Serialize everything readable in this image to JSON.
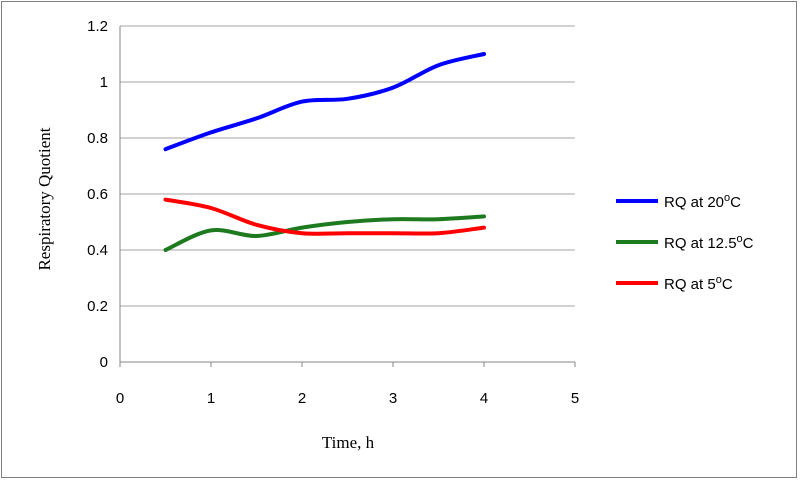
{
  "chart_data": {
    "type": "line",
    "title": "",
    "xlabel": "Time, h",
    "ylabel": "Respiratory Quotient",
    "xlim": [
      0,
      5
    ],
    "ylim": [
      0,
      1.2
    ],
    "x_ticks": [
      "0",
      "1",
      "2",
      "3",
      "4",
      "5"
    ],
    "y_ticks": [
      "0",
      "0.2",
      "0.4",
      "0.6",
      "0.8",
      "1",
      "1.2"
    ],
    "grid": "horizontal",
    "legend_position": "right",
    "x": [
      0.5,
      1,
      1.5,
      2,
      2.5,
      3,
      3.5,
      4
    ],
    "series": [
      {
        "name": "RQ at 20°C",
        "name_base": "RQ at 20",
        "name_sup": "o",
        "name_suffix": "C",
        "color": "#0000ff",
        "values": [
          0.76,
          0.82,
          0.87,
          0.93,
          0.94,
          0.98,
          1.06,
          1.1
        ]
      },
      {
        "name": "RQ at 12.5°C",
        "name_base": "RQ at 12.5",
        "name_sup": "o",
        "name_suffix": "C",
        "color": "#1e7a1e",
        "values": [
          0.4,
          0.47,
          0.45,
          0.48,
          0.5,
          0.51,
          0.51,
          0.52
        ]
      },
      {
        "name": "RQ at 5°C",
        "name_base": "RQ at 5",
        "name_sup": "o",
        "name_suffix": "C",
        "color": "#ff0000",
        "values": [
          0.58,
          0.55,
          0.49,
          0.46,
          0.46,
          0.46,
          0.46,
          0.48
        ]
      }
    ]
  }
}
